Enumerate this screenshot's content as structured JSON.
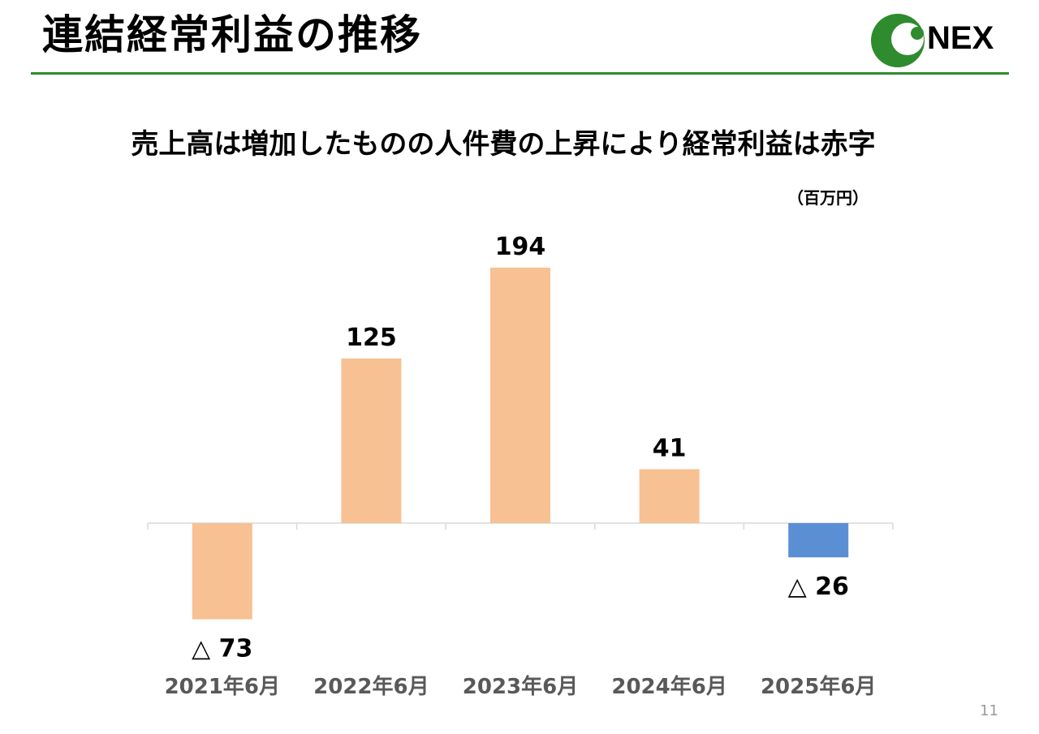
{
  "slide": {
    "title": "連結経常利益の推移",
    "headline": "売上高は増加したものの人件費の上昇により経常利益は赤字",
    "unit": "（百万円）",
    "page_number": "11",
    "logo_text": "NEX"
  },
  "colors": {
    "positive_bar": "#f7c193",
    "negative_highlight_bar": "#5b8fd4",
    "title_rule": "#2e8b2e",
    "logo_green": "#2e8b2e",
    "axis": "#d9d9d9",
    "category_label": "#595959"
  },
  "chart_data": {
    "type": "bar",
    "categories": [
      "2021年6月",
      "2022年6月",
      "2023年6月",
      "2024年6月",
      "2025年6月"
    ],
    "values": [
      -73,
      125,
      194,
      41,
      -26
    ],
    "data_labels": [
      "△ 73",
      "125",
      "194",
      "41",
      "△ 26"
    ],
    "bar_colors": [
      "#f7c193",
      "#f7c193",
      "#f7c193",
      "#f7c193",
      "#5b8fd4"
    ],
    "title": "",
    "xlabel": "",
    "ylabel": "",
    "unit": "百万円",
    "ylim": [
      -73,
      194
    ],
    "grid": false,
    "legend": "none"
  }
}
